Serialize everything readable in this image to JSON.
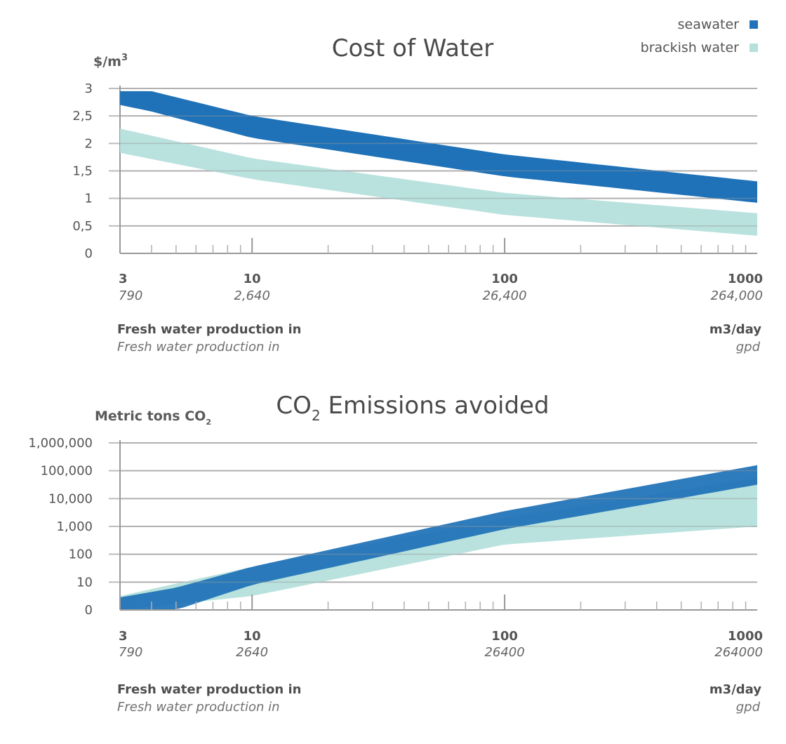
{
  "legend": [
    {
      "name": "seawater",
      "color": "#1f72b8"
    },
    {
      "name": "brackish water",
      "color": "#b5e0dc"
    }
  ],
  "chart_data": [
    {
      "type": "area",
      "title": "Cost of Water",
      "ylabel": "$/m",
      "ylabel_sup": "3",
      "yticks": [
        "0",
        "0,5",
        "1",
        "1,5",
        "2",
        "2,5",
        "3"
      ],
      "ylim": [
        0,
        3
      ],
      "xscale": "log",
      "xlim": [
        3,
        1000
      ],
      "xticks": [
        3,
        10,
        100,
        1000
      ],
      "xtick_labels": [
        "3",
        "10",
        "100",
        "1000"
      ],
      "xtick_labels_secondary": [
        "790",
        "2,640",
        "26,400",
        "264,000"
      ],
      "xlabel": "Fresh water production in",
      "xunit": "m3/day",
      "xlabel_secondary": "Fresh water production in",
      "xunit_secondary": "gpd",
      "grid": true,
      "series": [
        {
          "name": "seawater",
          "x": [
            3,
            4,
            10,
            100,
            1000
          ],
          "upper": [
            2.95,
            2.95,
            2.5,
            1.8,
            1.31
          ],
          "lower": [
            2.7,
            2.58,
            2.1,
            1.4,
            0.92
          ]
        },
        {
          "name": "brackish water",
          "x": [
            3,
            10,
            100,
            1000
          ],
          "upper": [
            2.27,
            1.73,
            1.1,
            0.73
          ],
          "lower": [
            1.83,
            1.35,
            0.7,
            0.32
          ]
        }
      ]
    },
    {
      "type": "area",
      "title": "CO",
      "title_sub": "2",
      "title_rest": " Emissions avoided",
      "ylabel": "Metric tons CO",
      "ylabel_sub": "2",
      "yscale": "log",
      "yticks": [
        "0",
        "10",
        "100",
        "1,000",
        "10,000",
        "100,000",
        "1,000,000"
      ],
      "xscale": "log",
      "xlim": [
        3,
        1000
      ],
      "xticks": [
        3,
        10,
        100,
        1000
      ],
      "xtick_labels": [
        "3",
        "10",
        "100",
        "1000"
      ],
      "xtick_labels_secondary": [
        "790",
        "2640",
        "26400",
        "264000"
      ],
      "xlabel": "Fresh water production in",
      "xunit": "m3/day",
      "xlabel_secondary": "Fresh water production in",
      "xunit_secondary": "gpd",
      "grid": true,
      "series": [
        {
          "name": "brackish water",
          "x": [
            3,
            10,
            100,
            1000
          ],
          "upper_level": [
            0.5,
            1.55,
            3.3,
            4.75
          ],
          "lower_level": [
            0,
            0.5,
            2.35,
            3.0
          ]
        },
        {
          "name": "seawater",
          "x": [
            3,
            5,
            10,
            100,
            1000
          ],
          "upper_level": [
            0.45,
            0.8,
            1.55,
            3.55,
            5.2
          ],
          "lower_level": [
            0,
            0,
            0.9,
            2.9,
            4.5
          ]
        }
      ]
    }
  ]
}
